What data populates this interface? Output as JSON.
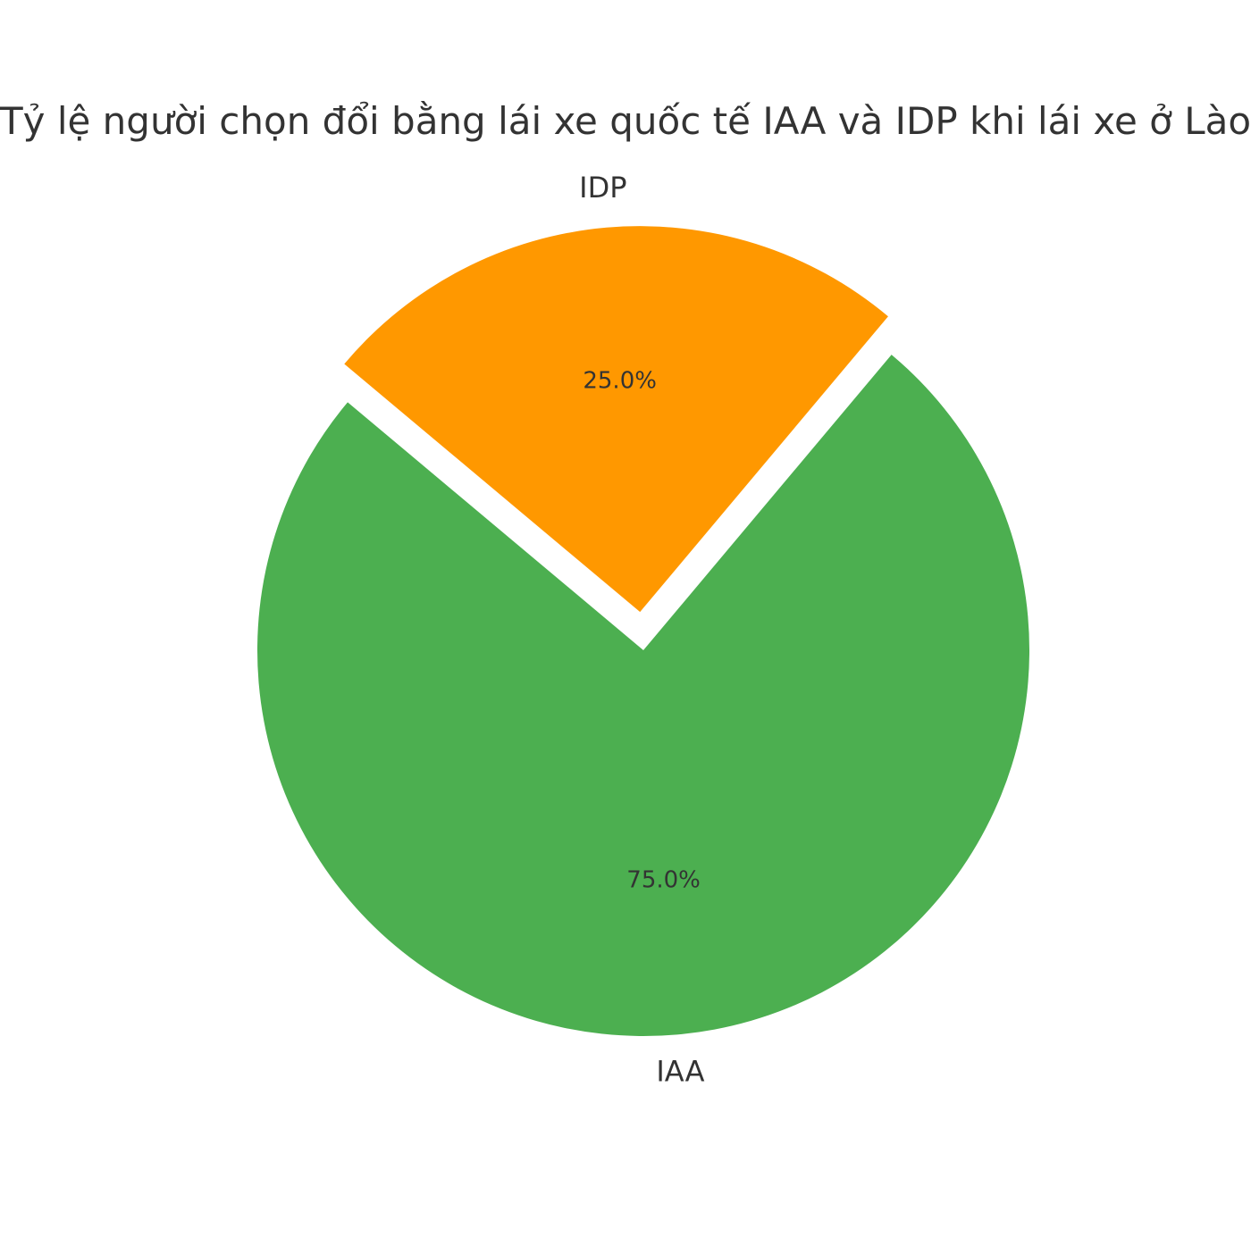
{
  "chart_data": {
    "type": "pie",
    "title": "Tỷ lệ người chọn đổi bằng lái xe quốc tế IAA và IDP khi lái xe ở Lào",
    "slices": [
      {
        "label": "IAA",
        "value": 75.0,
        "pct_label": "75.0%",
        "color": "#4caf50",
        "exploded": false
      },
      {
        "label": "IDP",
        "value": 25.0,
        "pct_label": "25.0%",
        "color": "#ff9800",
        "exploded": true
      }
    ],
    "legend": "none",
    "grid": false
  }
}
